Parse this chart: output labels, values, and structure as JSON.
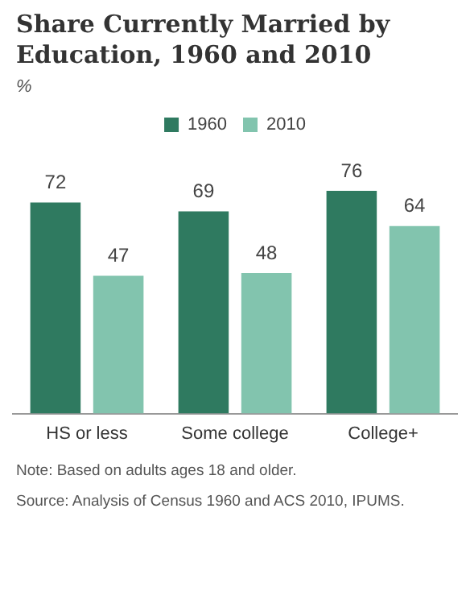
{
  "chart_data": {
    "type": "bar",
    "title": "Share Currently Married by Education, 1960 and 2010",
    "categories": [
      "HS or less",
      "Some college",
      "College+"
    ],
    "series": [
      {
        "name": "1960",
        "color": "#2f7a60",
        "values": [
          72,
          69,
          76
        ]
      },
      {
        "name": "2010",
        "color": "#82c4ae",
        "values": [
          47,
          48,
          64
        ]
      }
    ],
    "data_labels": true,
    "legend": "top",
    "grid": false,
    "annotations": [
      "%",
      "Note: Based on adults ages 18 and older.",
      "Source: Analysis of Census 1960 and ACS 2010, IPUMS."
    ]
  }
}
